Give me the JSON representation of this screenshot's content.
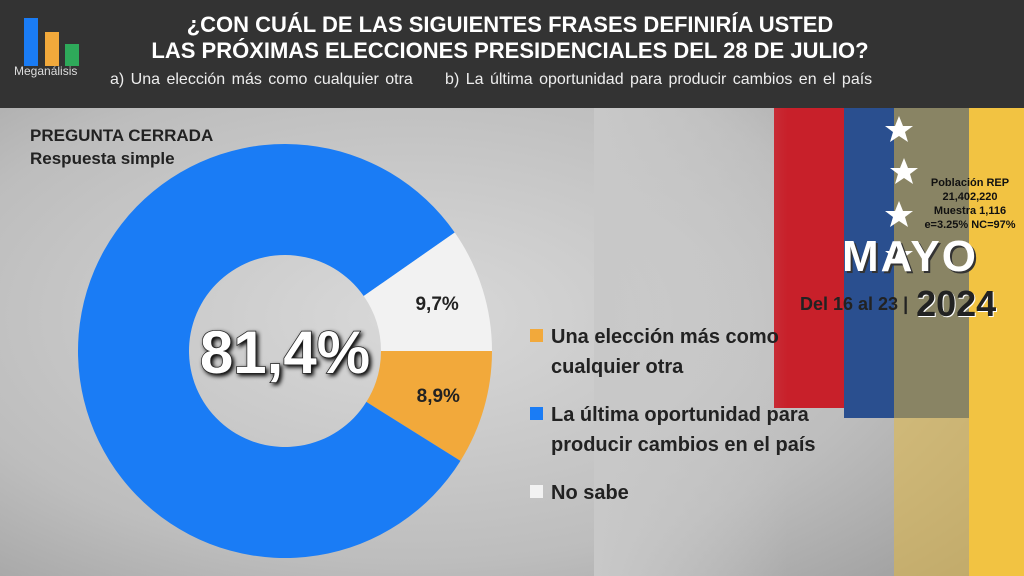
{
  "header": {
    "logo_text": "Meganálisis",
    "title_line1": "¿CON CUÁL DE LAS SIGUIENTES FRASES DEFINIRÍA USTED",
    "title_line2": "LAS PRÓXIMAS ELECCIONES PRESIDENCIALES DEL 28 DE JULIO?",
    "option_a": "a)  Una elección más como cualquier otra",
    "option_b": "b)  La última oportunidad  para producir cambios en el país"
  },
  "question_type": {
    "line1": "PREGUNTA  CERRADA",
    "line2": "Respuesta simple"
  },
  "info": {
    "population": "Población REP",
    "population_value": "21,402,220",
    "sample": "Muestra 1,116",
    "error": "e=3.25%  NC=97%"
  },
  "period": {
    "month": "MAYO",
    "dates": "Del 16 al 23 |",
    "year": "2024"
  },
  "colors": {
    "blue": "#1a7cf5",
    "orange": "#f2a93b",
    "white": "#f2f2f2"
  },
  "chart_data": {
    "type": "pie",
    "subtype": "donut",
    "title": "¿CON CUÁL DE LAS SIGUIENTES FRASES DEFINIRÍA USTED LAS PRÓXIMAS ELECCIONES PRESIDENCIALES DEL 28 DE JULIO?",
    "legend_position": "right",
    "slices": [
      {
        "name": "Una elección más como cualquier otra",
        "value": 8.9,
        "label": "8,9%",
        "color": "#f2a93b"
      },
      {
        "name": "La última oportunidad para producir cambios en el país",
        "value": 81.4,
        "label": "81,4%",
        "color": "#1a7cf5"
      },
      {
        "name": "No sabe",
        "value": 9.7,
        "label": "9,7%",
        "color": "#f2f2f2"
      }
    ]
  }
}
